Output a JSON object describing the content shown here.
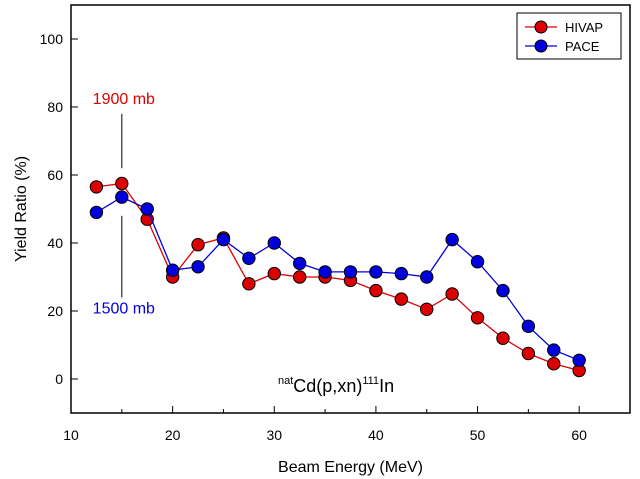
{
  "chart_data": {
    "type": "line",
    "xlabel": "Beam Energy (MeV)",
    "ylabel": "Yield Ratio (%)",
    "xlim": [
      10,
      65
    ],
    "ylim": [
      -10,
      110
    ],
    "x_ticks": [
      10,
      20,
      30,
      40,
      50,
      60
    ],
    "y_ticks": [
      0,
      20,
      40,
      60,
      80,
      100
    ],
    "legend_position": "top-right",
    "series": [
      {
        "name": "HIVAP",
        "color": "#dd0000",
        "x": [
          12.5,
          15,
          17.5,
          20,
          22.5,
          25,
          27.5,
          30,
          32.5,
          35,
          37.5,
          40,
          42.5,
          45,
          47.5,
          50,
          52.5,
          55,
          57.5,
          60
        ],
        "values": [
          56.5,
          57.5,
          47,
          30,
          39.5,
          41.5,
          28,
          31,
          30,
          30,
          29,
          26,
          23.5,
          20.5,
          25,
          18,
          12,
          7.5,
          4.5,
          2.5
        ]
      },
      {
        "name": "PACE",
        "color": "#0000dd",
        "x": [
          12.5,
          15,
          17.5,
          20,
          22.5,
          25,
          27.5,
          30,
          32.5,
          35,
          37.5,
          40,
          42.5,
          45,
          47.5,
          50,
          52.5,
          55,
          57.5,
          60
        ],
        "values": [
          49,
          53.5,
          50,
          32,
          33,
          41,
          35.5,
          40,
          34,
          31.5,
          31.5,
          31.5,
          31,
          30,
          41,
          34.5,
          26,
          15.5,
          8.5,
          5.5
        ]
      }
    ],
    "annotations": [
      {
        "text": "1900 mb",
        "color": "#dd0000",
        "x": 15,
        "y": 57.5,
        "line_from_y": 78,
        "line_to_y": 62
      },
      {
        "text": "1500 mb",
        "color": "#0000dd",
        "x": 15,
        "y": 53.5,
        "line_from_y": 48,
        "line_to_y": 24
      }
    ],
    "reaction": {
      "sup1": "nat",
      "base": "Cd(p,xn)",
      "sup2": "111",
      "tail": "In"
    }
  }
}
